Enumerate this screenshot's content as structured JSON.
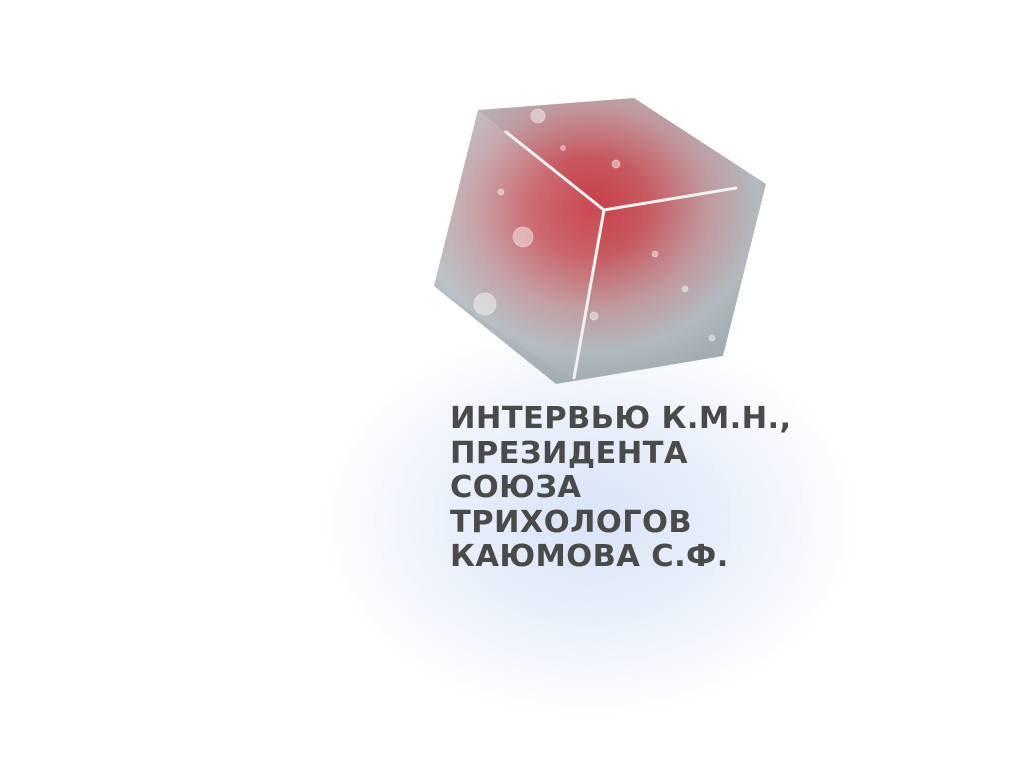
{
  "graphic": {
    "icon": "crystal-cube-icon",
    "colors": {
      "outer": "#aeb6bc",
      "inner": "#c83a44",
      "edge": "#f2f2f2"
    }
  },
  "headline": {
    "lines": [
      "ИНТЕРВЬЮ К.М.Н.,",
      "ПРЕЗИДЕНТА",
      "СОЮЗА",
      "ТРИХОЛОГОВ",
      "КАЮМОВА С.Ф."
    ]
  },
  "colors": {
    "text": "#4a4a4a",
    "background": "#ffffff",
    "glow": "#dbe5f6"
  }
}
